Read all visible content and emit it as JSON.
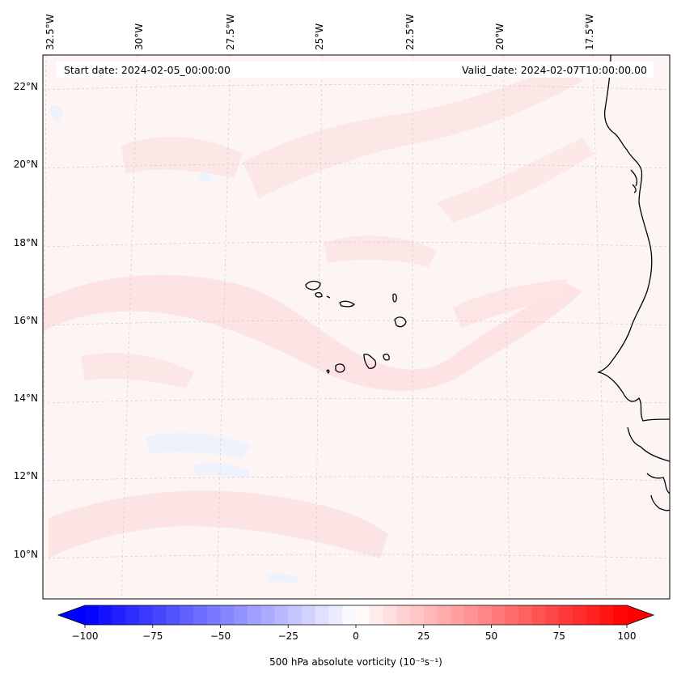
{
  "header": {
    "start_date": "Start date: 2024-02-05_00:00:00",
    "valid_date": "Valid_date: 2024-02-07T10:00:00.00"
  },
  "map": {
    "lon_labels": [
      "32.5°W",
      "30°W",
      "27.5°W",
      "25°W",
      "22.5°W",
      "20°W",
      "17.5°W"
    ],
    "lat_labels": [
      "22°N",
      "20°N",
      "18°N",
      "16°N",
      "14°N",
      "12°N",
      "10°N"
    ],
    "field": "500 hPa absolute vorticity",
    "colors": {
      "background_light_red": "#fdf3f3",
      "patch_red": "#fde4e4",
      "patch_blue": "#eef2fd",
      "coastline": "#000000"
    }
  },
  "colorbar": {
    "ticks": [
      "−100",
      "−75",
      "−50",
      "−25",
      "0",
      "25",
      "50",
      "75",
      "100"
    ],
    "label": "500 hPa absolute vorticity (10⁻⁵s⁻¹)",
    "min": -100,
    "max": 100,
    "low_color": "#0000ff",
    "high_color": "#ff0000"
  }
}
